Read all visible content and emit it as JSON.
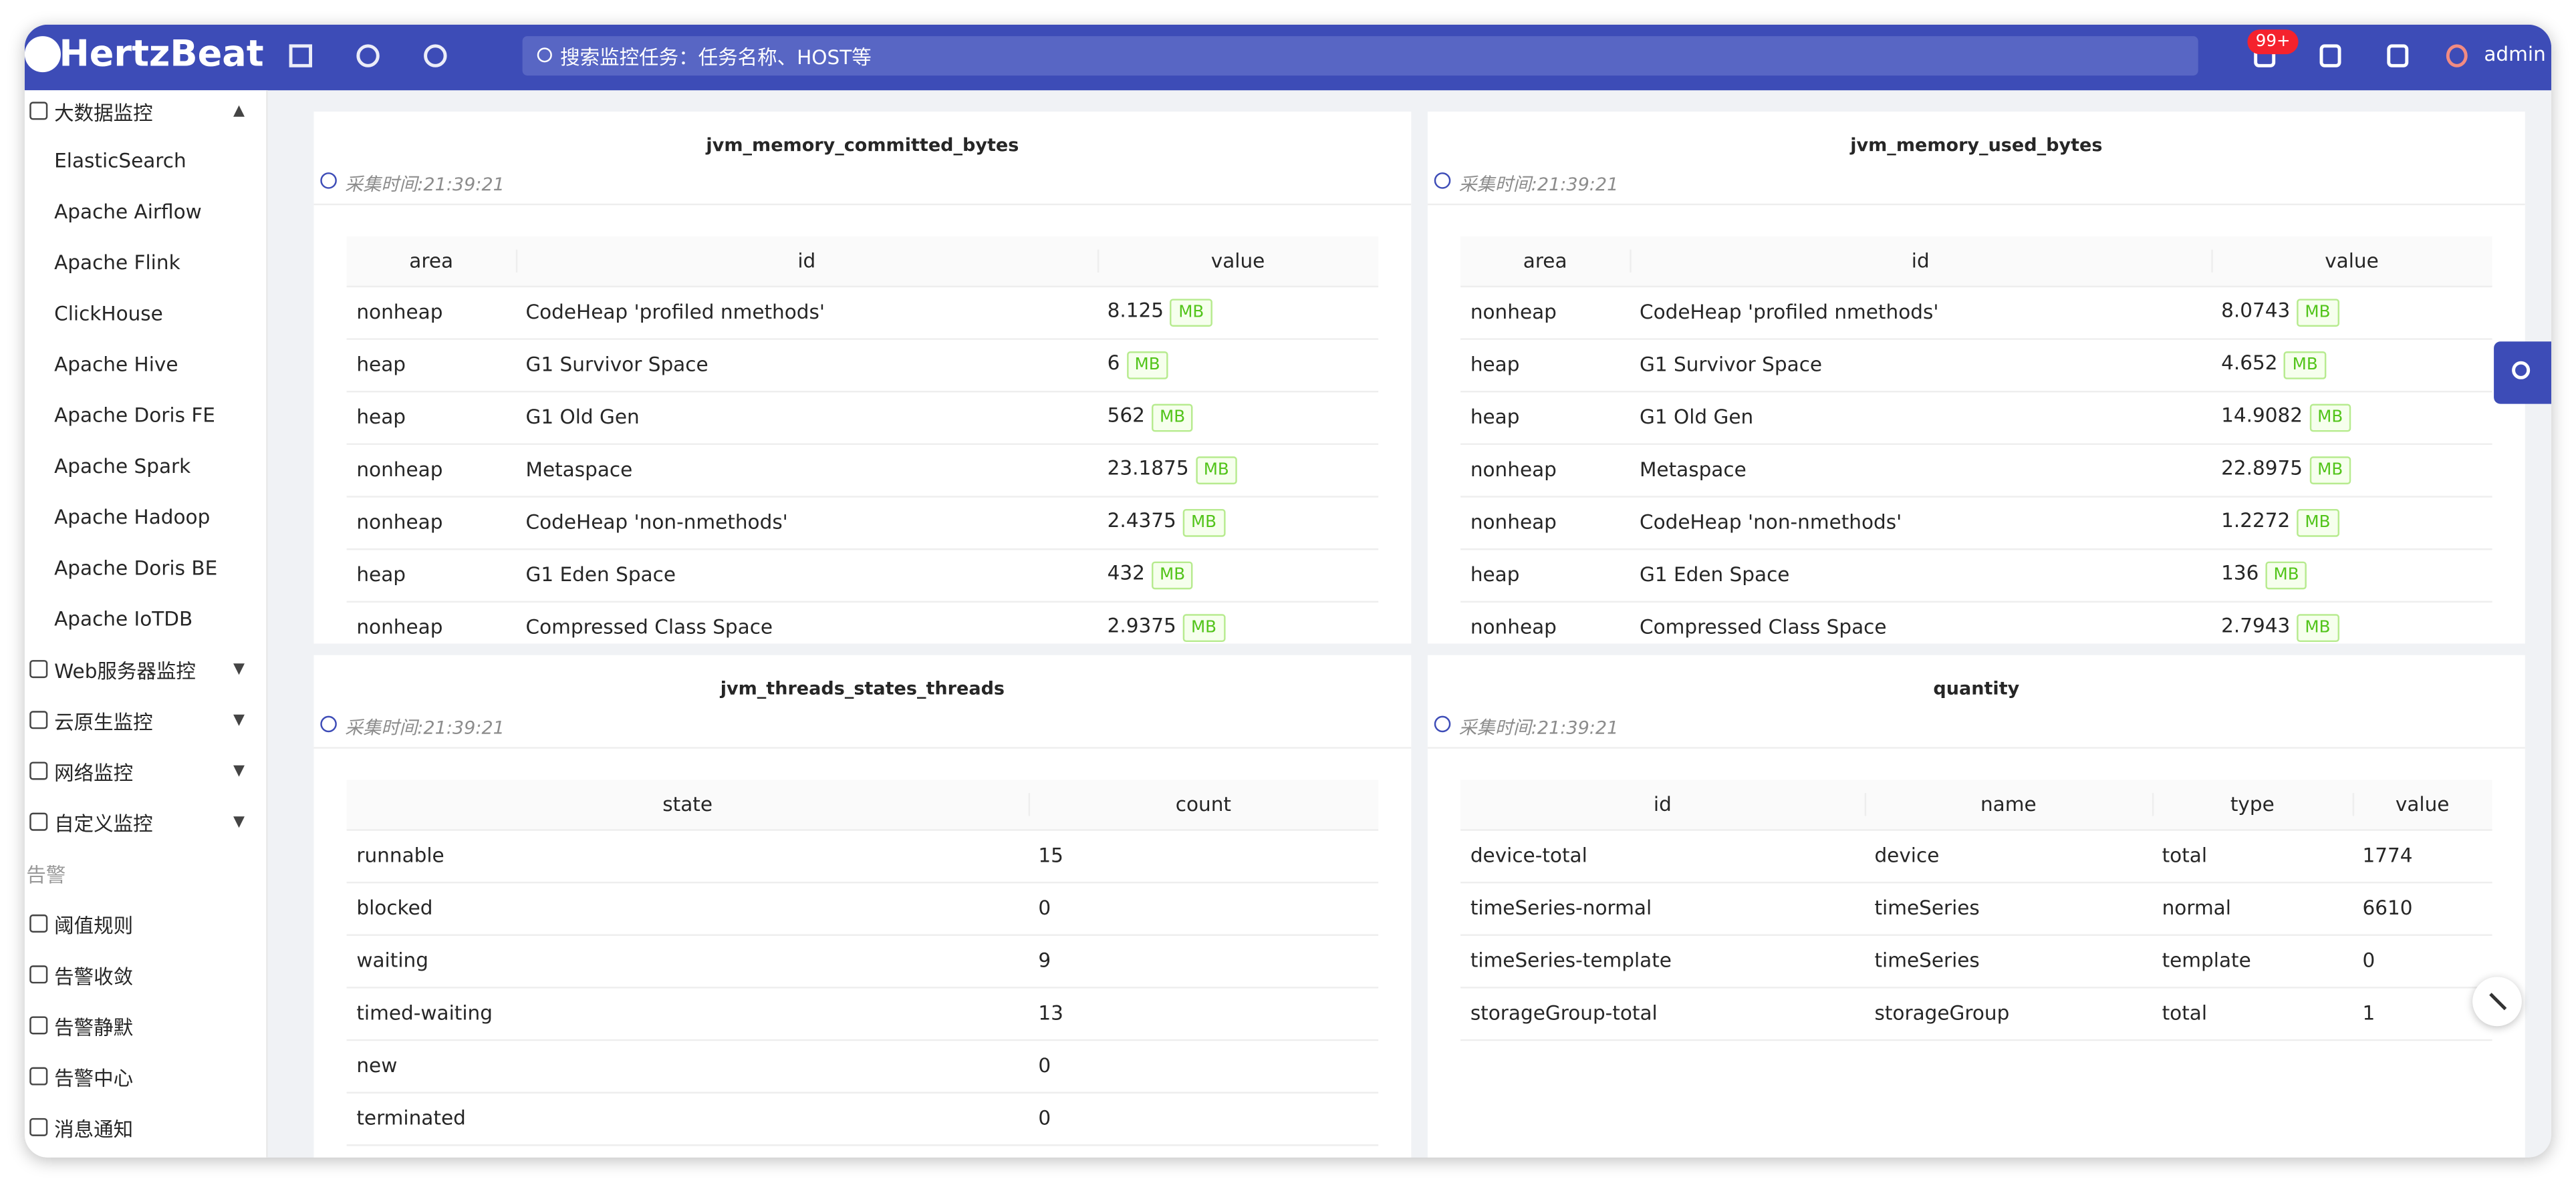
{
  "header": {
    "logo": "HertzBeat",
    "search": "搜索监控任务：任务名称、HOST等",
    "badge": "99+",
    "user": "admin"
  },
  "sidebar": {
    "group": "大数据监控",
    "items": [
      "ElasticSearch",
      "Apache Airflow",
      "Apache Flink",
      "ClickHouse",
      "Apache Hive",
      "Apache Doris FE",
      "Apache Spark",
      "Apache Hadoop",
      "Apache Doris BE",
      "Apache IoTDB"
    ],
    "menus": [
      "Web服务器监控",
      "云原生监控",
      "网络监控",
      "自定义监控"
    ],
    "section": "告警",
    "alert_items": [
      "阈值规则",
      "告警收敛",
      "告警静默",
      "告警中心",
      "消息通知"
    ]
  },
  "panels": [
    {
      "title": "jvm_memory_committed_bytes",
      "time": "采集时间:21:39:21",
      "unit": "MB",
      "columns": [
        "area",
        "id",
        "value"
      ],
      "rows": [
        [
          "nonheap",
          "CodeHeap 'profiled nmethods'",
          "8.125"
        ],
        [
          "heap",
          "G1 Survivor Space",
          "6"
        ],
        [
          "heap",
          "G1 Old Gen",
          "562"
        ],
        [
          "nonheap",
          "Metaspace",
          "23.1875"
        ],
        [
          "nonheap",
          "CodeHeap 'non-nmethods'",
          "2.4375"
        ],
        [
          "heap",
          "G1 Eden Space",
          "432"
        ],
        [
          "nonheap",
          "Compressed Class Space",
          "2.9375"
        ]
      ]
    },
    {
      "title": "jvm_memory_used_bytes",
      "time": "采集时间:21:39:21",
      "unit": "MB",
      "columns": [
        "area",
        "id",
        "value"
      ],
      "rows": [
        [
          "nonheap",
          "CodeHeap 'profiled nmethods'",
          "8.0743"
        ],
        [
          "heap",
          "G1 Survivor Space",
          "4.652"
        ],
        [
          "heap",
          "G1 Old Gen",
          "14.9082"
        ],
        [
          "nonheap",
          "Metaspace",
          "22.8975"
        ],
        [
          "nonheap",
          "CodeHeap 'non-nmethods'",
          "1.2272"
        ],
        [
          "heap",
          "G1 Eden Space",
          "136"
        ],
        [
          "nonheap",
          "Compressed Class Space",
          "2.7943"
        ]
      ]
    },
    {
      "title": "jvm_threads_states_threads",
      "time": "采集时间:21:39:21",
      "columns": [
        "state",
        "count"
      ],
      "rows": [
        [
          "runnable",
          "15"
        ],
        [
          "blocked",
          "0"
        ],
        [
          "waiting",
          "9"
        ],
        [
          "timed-waiting",
          "13"
        ],
        [
          "new",
          "0"
        ],
        [
          "terminated",
          "0"
        ]
      ]
    },
    {
      "title": "quantity",
      "time": "采集时间:21:39:21",
      "columns": [
        "id",
        "name",
        "type",
        "value"
      ],
      "rows": [
        [
          "device-total",
          "device",
          "total",
          "1774"
        ],
        [
          "timeSeries-normal",
          "timeSeries",
          "normal",
          "6610"
        ],
        [
          "timeSeries-template",
          "timeSeries",
          "template",
          "0"
        ],
        [
          "storageGroup-total",
          "storageGroup",
          "total",
          "1"
        ]
      ]
    }
  ]
}
